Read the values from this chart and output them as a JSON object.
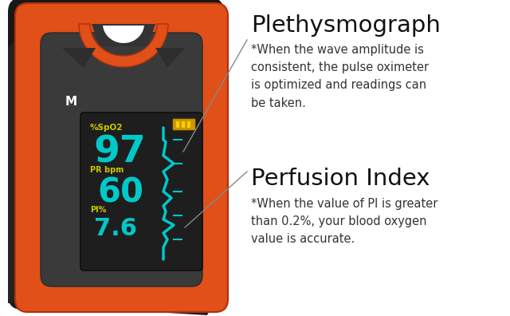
{
  "bg_color": "#ffffff",
  "device_orange": "#E05018",
  "device_orange_dark": "#B03010",
  "device_shadow": "#111111",
  "device_gray": "#555555",
  "device_dark_panel": "#3A3A3A",
  "screen_bg": "#1E1E1E",
  "screen_value_color": "#00C8C8",
  "screen_label_color": "#C8C800",
  "screen_text_spo2_label": "%SpO2",
  "screen_text_spo2_value": "97",
  "screen_text_pr_label": "PR bpm",
  "screen_text_pr_value": "60",
  "screen_text_pi_label": "PI%",
  "screen_text_pi_value": "7.6",
  "annotation1_title": "Plethysmograph",
  "annotation1_desc": "*When the wave amplitude is\nconsistent, the pulse oximeter\nis optimized and readings can\nbe taken.",
  "annotation2_title": "Perfusion Index",
  "annotation2_desc": "*When the value of PI is greater\nthan 0.2%, your blood oxygen\nvalue is accurate.",
  "line_color": "#888888",
  "text_color": "#111111",
  "desc_color": "#333333"
}
